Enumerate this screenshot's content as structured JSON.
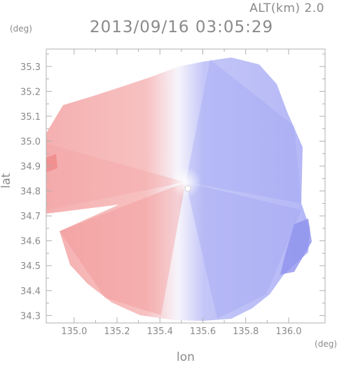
{
  "header": {
    "altitude_label": "ALT(km) 2.0",
    "timestamp": "2013/09/16 03:05:29"
  },
  "axes": {
    "lat_unit": "(deg)",
    "lon_unit": "(deg)",
    "xlabel": "lon",
    "ylabel": "lat"
  },
  "chart_data": {
    "type": "heatmap",
    "x": [
      135.0,
      135.2,
      135.4,
      135.6,
      135.8,
      136.0
    ],
    "x_tick_labels": [
      "135.0",
      "135.2",
      "135.4",
      "135.6",
      "135.8",
      "136.0"
    ],
    "y": [
      34.3,
      34.4,
      34.5,
      34.6,
      34.7,
      34.8,
      34.9,
      35.0,
      35.1,
      35.2,
      35.3
    ],
    "y_tick_labels": [
      "34.3",
      "34.4",
      "34.5",
      "34.6",
      "34.7",
      "34.8",
      "34.9",
      "35.0",
      "35.1",
      "35.2",
      "35.3"
    ],
    "xlim": [
      134.87,
      136.17
    ],
    "ylim": [
      34.27,
      35.37
    ],
    "radar_center": [
      135.53,
      34.81
    ],
    "colors": {
      "positive": "#f4a6a6",
      "negative": "#a6a9f4",
      "neutral": "#f6f6fb",
      "frame": "#b0b0b0"
    }
  }
}
